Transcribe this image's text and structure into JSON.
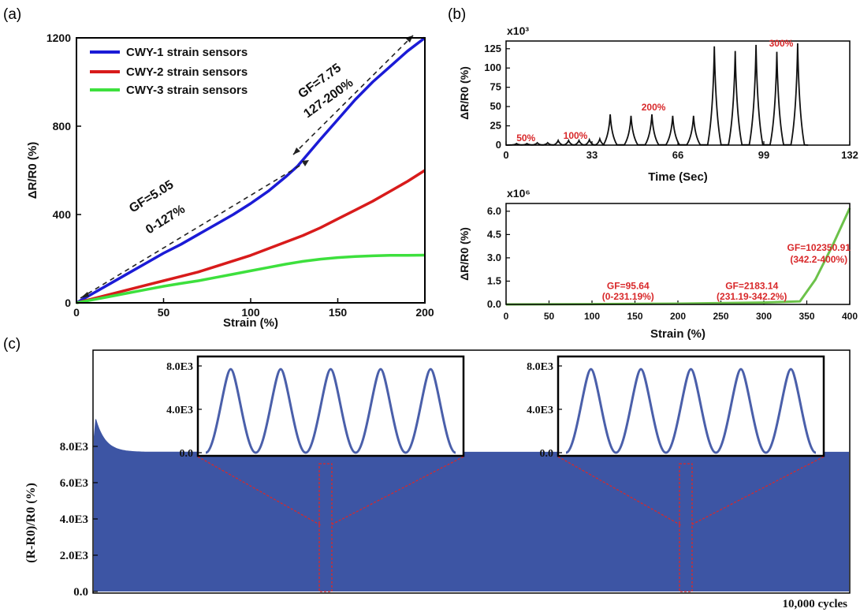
{
  "panel_labels": {
    "a": "(a)",
    "b": "(b)",
    "c": "(c)"
  },
  "colors": {
    "cwy1": "#1b1bd6",
    "cwy2": "#d81b1b",
    "cwy3": "#3de03d",
    "green_b": "#6cc24a",
    "annot_red": "#d8282a",
    "fill_c": "#3d55a4",
    "dash_red": "#d8282a"
  },
  "chart_data": [
    {
      "id": "a",
      "type": "line",
      "xlabel": "Strain (%)",
      "ylabel": "ΔR/R0 (%)",
      "xlim": [
        0,
        200
      ],
      "ylim": [
        0,
        1200
      ],
      "xticks": [
        "0",
        "50",
        "100",
        "150",
        "200"
      ],
      "yticks": [
        "0",
        "400",
        "800",
        "1200"
      ],
      "legend_position": "top-left",
      "series": [
        {
          "name": "CWY-1 strain sensors",
          "x": [
            0,
            10,
            20,
            30,
            40,
            50,
            60,
            70,
            80,
            90,
            100,
            110,
            120,
            127,
            140,
            150,
            160,
            170,
            180,
            190,
            200
          ],
          "y": [
            0,
            45,
            90,
            135,
            180,
            225,
            265,
            310,
            355,
            400,
            450,
            505,
            570,
            620,
            740,
            830,
            920,
            1000,
            1070,
            1140,
            1200
          ]
        },
        {
          "name": "CWY-2 strain sensors",
          "x": [
            0,
            10,
            20,
            30,
            40,
            50,
            60,
            70,
            80,
            90,
            100,
            110,
            120,
            130,
            140,
            150,
            160,
            170,
            180,
            190,
            200
          ],
          "y": [
            0,
            20,
            40,
            60,
            80,
            100,
            120,
            140,
            165,
            190,
            215,
            245,
            275,
            305,
            340,
            380,
            420,
            460,
            505,
            550,
            600
          ]
        },
        {
          "name": "CWY-3 strain sensors",
          "x": [
            0,
            10,
            20,
            30,
            40,
            50,
            60,
            70,
            80,
            90,
            100,
            110,
            120,
            130,
            140,
            150,
            160,
            170,
            180,
            190,
            200
          ],
          "y": [
            0,
            15,
            30,
            45,
            60,
            75,
            88,
            100,
            115,
            130,
            145,
            160,
            175,
            188,
            198,
            205,
            210,
            213,
            215,
            215,
            216
          ]
        }
      ],
      "annotations": [
        {
          "text": "GF=7.75",
          "x": 168,
          "y": 960
        },
        {
          "text": "127-200%",
          "x": 168,
          "y": 860
        },
        {
          "text": "GF=5.05",
          "x": 47,
          "y": 380
        },
        {
          "text": "0-127%",
          "x": 55,
          "y": 270
        }
      ]
    },
    {
      "id": "b-top",
      "type": "line",
      "xlabel": "Time (Sec)",
      "ylabel": "ΔR/R0 (%)",
      "y_multiplier": "x10³",
      "xlim": [
        0,
        132
      ],
      "ylim": [
        0,
        135
      ],
      "xticks": [
        "0",
        "33",
        "66",
        "99",
        "132"
      ],
      "yticks": [
        "0",
        "25",
        "50",
        "75",
        "100",
        "125"
      ],
      "peaks": [
        {
          "t": 4,
          "v": 2
        },
        {
          "t": 8,
          "v": 2
        },
        {
          "t": 12,
          "v": 3
        },
        {
          "t": 16,
          "v": 3
        },
        {
          "t": 20,
          "v": 6
        },
        {
          "t": 24,
          "v": 6
        },
        {
          "t": 28,
          "v": 6
        },
        {
          "t": 32,
          "v": 7
        },
        {
          "t": 36,
          "v": 8
        },
        {
          "t": 40,
          "v": 40
        },
        {
          "t": 48,
          "v": 38
        },
        {
          "t": 56,
          "v": 40
        },
        {
          "t": 64,
          "v": 38
        },
        {
          "t": 72,
          "v": 38
        },
        {
          "t": 80,
          "v": 128
        },
        {
          "t": 88,
          "v": 122
        },
        {
          "t": 96,
          "v": 130
        },
        {
          "t": 104,
          "v": 121
        },
        {
          "t": 112,
          "v": 132
        }
      ],
      "annotations": [
        {
          "text": "50%",
          "x": 4,
          "y": 5
        },
        {
          "text": "100%",
          "x": 22,
          "y": 8
        },
        {
          "text": "200%",
          "x": 52,
          "y": 45
        },
        {
          "text": "300%",
          "x": 101,
          "y": 128
        }
      ]
    },
    {
      "id": "b-bottom",
      "type": "line",
      "xlabel": "Strain (%)",
      "ylabel": "ΔR/R0 (%)",
      "y_multiplier": "x10⁶",
      "xlim": [
        0,
        400
      ],
      "ylim": [
        0,
        6.5
      ],
      "xticks": [
        "0",
        "50",
        "100",
        "150",
        "200",
        "250",
        "300",
        "350",
        "400"
      ],
      "yticks": [
        "0.0",
        "1.5",
        "3.0",
        "4.5",
        "6.0"
      ],
      "series": [
        {
          "name": "",
          "x": [
            0,
            100,
            200,
            300,
            342,
            360,
            380,
            400
          ],
          "y": [
            0,
            0.02,
            0.05,
            0.12,
            0.2,
            1.6,
            3.8,
            6.2
          ]
        }
      ],
      "annotations": [
        {
          "text": "GF=95.64",
          "x": 142,
          "y": 1.0
        },
        {
          "text": "(0-231.19%)",
          "x": 142,
          "y": 0.3
        },
        {
          "text": "GF=2183.14",
          "x": 286,
          "y": 1.0
        },
        {
          "text": "(231.19-342.2%)",
          "x": 286,
          "y": 0.3
        },
        {
          "text": "GF=102350.91",
          "x": 364,
          "y": 3.45
        },
        {
          "text": "(342.2-400%)",
          "x": 364,
          "y": 2.7
        }
      ]
    },
    {
      "id": "c",
      "type": "area",
      "ylabel": "(R-R0)/R0 (%)",
      "xlabel_annotation": "10,000 cycles",
      "ylim": [
        0,
        10000
      ],
      "yticks": [
        "0.0",
        "2.0E3",
        "4.0E3",
        "6.0E3",
        "8.0E3"
      ],
      "cycles": 10000,
      "plateau": 7700,
      "initial": 9500,
      "insets": [
        {
          "ylim": [
            0,
            8000
          ],
          "yticks": [
            "0.0",
            "4.0E3",
            "8.0E3"
          ],
          "peaks": 5,
          "peak_value": 7700
        },
        {
          "ylim": [
            0,
            8000
          ],
          "yticks": [
            "0.0",
            "4.0E3",
            "8.0E3"
          ],
          "peaks": 5,
          "peak_value": 7700
        }
      ]
    }
  ]
}
